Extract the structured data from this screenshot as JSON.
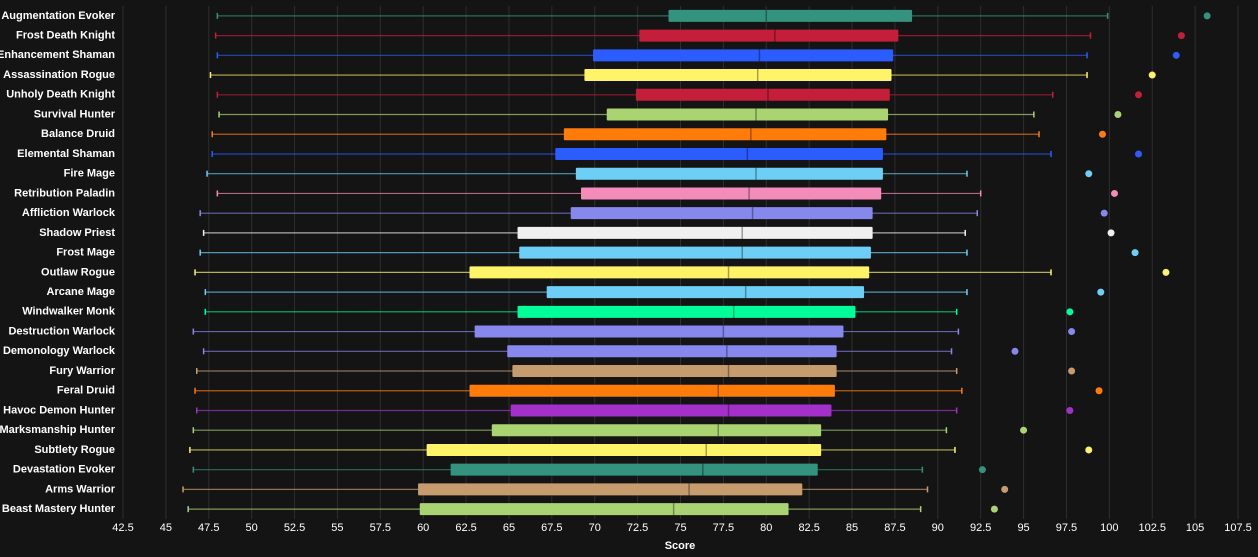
{
  "chart_data": {
    "type": "box",
    "xlabel": "Score",
    "categories": [
      "Augmentation Evoker",
      "Frost Death Knight",
      "Enhancement Shaman",
      "Assassination Rogue",
      "Unholy Death Knight",
      "Survival Hunter",
      "Balance Druid",
      "Elemental Shaman",
      "Fire Mage",
      "Retribution Paladin",
      "Affliction Warlock",
      "Shadow Priest",
      "Frost Mage",
      "Outlaw Rogue",
      "Arcane Mage",
      "Windwalker Monk",
      "Destruction Warlock",
      "Demonology Warlock",
      "Fury Warrior",
      "Feral Druid",
      "Havoc Demon Hunter",
      "Marksmanship Hunter",
      "Subtlety Rogue",
      "Devastation Evoker",
      "Arms Warrior",
      "Beast Mastery Hunter"
    ],
    "colors": [
      "#33937f",
      "#c41e3a",
      "#2a5cff",
      "#fff468",
      "#c41e3a",
      "#aad372",
      "#ff7c0a",
      "#2a5cff",
      "#6dcff6",
      "#f48cba",
      "#8788ee",
      "#f0f0f0",
      "#6dcff6",
      "#fff468",
      "#6dcff6",
      "#00ff98",
      "#8788ee",
      "#8788ee",
      "#c69b6d",
      "#ff7c0a",
      "#a330c9",
      "#aad372",
      "#fff468",
      "#33937f",
      "#c69b6d",
      "#aad372"
    ],
    "whisker_low": [
      48.0,
      47.9,
      48.0,
      47.6,
      48.0,
      48.1,
      47.7,
      47.7,
      47.4,
      48.0,
      47.0,
      47.2,
      47.0,
      46.7,
      47.3,
      47.3,
      46.6,
      47.2,
      46.8,
      46.7,
      46.8,
      46.6,
      46.4,
      46.6,
      46.0,
      46.3
    ],
    "q1": [
      74.3,
      72.6,
      69.9,
      69.4,
      72.4,
      70.7,
      68.2,
      67.7,
      68.9,
      69.2,
      68.6,
      65.5,
      65.6,
      62.7,
      67.2,
      65.5,
      63.0,
      64.9,
      65.2,
      62.7,
      65.1,
      64.0,
      60.2,
      61.6,
      59.7,
      59.8
    ],
    "median": [
      80.0,
      80.5,
      79.6,
      79.5,
      80.1,
      79.4,
      79.1,
      78.9,
      79.4,
      79.0,
      79.2,
      78.6,
      78.6,
      77.8,
      78.8,
      78.1,
      77.5,
      77.7,
      77.8,
      77.2,
      77.8,
      77.2,
      76.5,
      76.3,
      75.5,
      74.6
    ],
    "q3": [
      88.5,
      87.7,
      87.4,
      87.3,
      87.2,
      87.1,
      87.0,
      86.8,
      86.8,
      86.7,
      86.2,
      86.2,
      86.1,
      86.0,
      85.7,
      85.2,
      84.5,
      84.1,
      84.1,
      84.0,
      83.8,
      83.2,
      83.2,
      83.0,
      82.1,
      81.3
    ],
    "whisker_high": [
      99.9,
      98.9,
      98.7,
      98.7,
      96.7,
      95.6,
      95.9,
      96.6,
      91.7,
      92.5,
      92.3,
      91.6,
      91.7,
      96.6,
      91.7,
      91.1,
      91.2,
      90.8,
      91.1,
      91.4,
      91.1,
      90.5,
      91.0,
      89.1,
      89.4,
      89.0
    ],
    "outliers": [
      105.7,
      104.2,
      103.9,
      102.5,
      101.7,
      100.5,
      99.6,
      101.7,
      98.8,
      100.3,
      99.7,
      100.1,
      101.5,
      103.3,
      99.5,
      97.7,
      97.8,
      94.5,
      97.8,
      99.4,
      97.7,
      95.0,
      98.8,
      92.6,
      93.9,
      93.3
    ],
    "xlim": [
      42.5,
      107.5
    ],
    "xticks": [
      42.5,
      45,
      47.5,
      50,
      52.5,
      55,
      57.5,
      60,
      62.5,
      65,
      67.5,
      70,
      72.5,
      75,
      77.5,
      80,
      82.5,
      85,
      87.5,
      90,
      92.5,
      95,
      97.5,
      100,
      102.5,
      105,
      107.5
    ],
    "grid": true
  }
}
